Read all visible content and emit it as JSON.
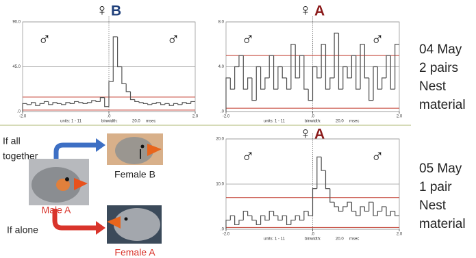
{
  "chart_data": [
    {
      "type": "histogram",
      "title_symbol": "♀",
      "title": "B",
      "title_color": "#1f3f7a",
      "annotations": [
        "♂",
        "♂"
      ],
      "bins": [
        -2.0,
        -1.9,
        -1.8,
        -1.7,
        -1.6,
        -1.5,
        -1.4,
        -1.3,
        -1.2,
        -1.1,
        -1.0,
        -0.9,
        -0.8,
        -0.7,
        -0.6,
        -0.5,
        -0.4,
        -0.3,
        -0.2,
        -0.1,
        0.0,
        0.1,
        0.2,
        0.3,
        0.4,
        0.5,
        0.6,
        0.7,
        0.8,
        0.9,
        1.0,
        1.1,
        1.2,
        1.3,
        1.4,
        1.5,
        1.6,
        1.7,
        1.8,
        1.9,
        2.0
      ],
      "values": [
        8,
        7,
        9,
        6,
        8,
        10,
        7,
        9,
        8,
        7,
        9,
        8,
        10,
        9,
        8,
        9,
        11,
        10,
        14,
        5,
        30,
        75,
        45,
        28,
        20,
        12,
        10,
        9,
        8,
        7,
        8,
        9,
        7,
        8,
        6,
        8,
        7,
        9,
        8,
        10
      ],
      "color": "#555555",
      "xlim": [
        -2.0,
        2.0
      ],
      "xticks": [
        {
          "value": -2.0,
          "label": "-2.0"
        },
        {
          "value": 0,
          "label": ".0"
        },
        {
          "value": 2.0,
          "label": "2.0"
        }
      ],
      "ylim": [
        0,
        90
      ],
      "yticks": [
        {
          "value": 0,
          "label": ".0"
        },
        {
          "value": 45,
          "label": "45.0"
        },
        {
          "value": 90,
          "label": "90.0"
        }
      ],
      "grid": true,
      "reference_lines": [
        14.5,
        1.5
      ],
      "reference_color": "#c0392b",
      "footer": [
        "units:  1 - 11",
        "binwidth:",
        "20.0",
        "msec"
      ]
    },
    {
      "type": "histogram",
      "title_symbol": "♀",
      "title": "A",
      "title_color": "#8b1a1a",
      "annotations": [
        "♂",
        "♂"
      ],
      "bins": [
        -2.0,
        -1.9,
        -1.8,
        -1.7,
        -1.6,
        -1.5,
        -1.4,
        -1.3,
        -1.2,
        -1.1,
        -1.0,
        -0.9,
        -0.8,
        -0.7,
        -0.6,
        -0.5,
        -0.4,
        -0.3,
        -0.2,
        -0.1,
        0.0,
        0.1,
        0.2,
        0.3,
        0.4,
        0.5,
        0.6,
        0.7,
        0.8,
        0.9,
        1.0,
        1.1,
        1.2,
        1.3,
        1.4,
        1.5,
        1.6,
        1.7,
        1.8,
        1.9,
        2.0
      ],
      "values": [
        3,
        2,
        4,
        5,
        2,
        3,
        1,
        4,
        2,
        3,
        5,
        2,
        4,
        3,
        2,
        6,
        3,
        5,
        2,
        1,
        4,
        3,
        6,
        2,
        3,
        7,
        2,
        4,
        3,
        5,
        2,
        6,
        3,
        1,
        4,
        2,
        3,
        5,
        2,
        6
      ],
      "color": "#555555",
      "xlim": [
        -2.0,
        2.0
      ],
      "xticks": [
        {
          "value": -2.0,
          "label": "-2.0"
        },
        {
          "value": 0,
          "label": ".0"
        },
        {
          "value": 2.0,
          "label": "2.0"
        }
      ],
      "ylim": [
        0,
        8
      ],
      "yticks": [
        {
          "value": 0,
          "label": ".0"
        },
        {
          "value": 4,
          "label": "4.0"
        },
        {
          "value": 8,
          "label": "8.0"
        }
      ],
      "grid": true,
      "reference_lines": [
        5,
        0.3
      ],
      "reference_color": "#c0392b",
      "footer": [
        "units:  1 - 11",
        "binwidth:",
        "20.0",
        "msec"
      ]
    },
    {
      "type": "histogram",
      "title_symbol": "♀",
      "title": "A",
      "title_color": "#8b1a1a",
      "annotations": [
        "♂",
        "♂"
      ],
      "bins": [
        -2.0,
        -1.9,
        -1.8,
        -1.7,
        -1.6,
        -1.5,
        -1.4,
        -1.3,
        -1.2,
        -1.1,
        -1.0,
        -0.9,
        -0.8,
        -0.7,
        -0.6,
        -0.5,
        -0.4,
        -0.3,
        -0.2,
        -0.1,
        0.0,
        0.1,
        0.2,
        0.3,
        0.4,
        0.5,
        0.6,
        0.7,
        0.8,
        0.9,
        1.0,
        1.1,
        1.2,
        1.3,
        1.4,
        1.5,
        1.6,
        1.7,
        1.8,
        1.9,
        2.0
      ],
      "values": [
        2,
        3,
        1,
        2,
        4,
        3,
        2,
        1,
        3,
        2,
        4,
        3,
        2,
        3,
        1,
        2,
        3,
        2,
        4,
        3,
        9,
        16,
        13,
        9,
        6,
        5,
        4,
        5,
        6,
        4,
        3,
        5,
        4,
        6,
        3,
        4,
        5,
        3,
        4,
        3
      ],
      "color": "#555555",
      "xlim": [
        -2.0,
        2.0
      ],
      "xticks": [
        {
          "value": -2.0,
          "label": "-2.0"
        },
        {
          "value": 0,
          "label": ".0"
        },
        {
          "value": 2.0,
          "label": "2.0"
        }
      ],
      "ylim": [
        0,
        20
      ],
      "yticks": [
        {
          "value": 0,
          "label": ".0"
        },
        {
          "value": 10,
          "label": "10.0"
        },
        {
          "value": 20,
          "label": "20.0"
        }
      ],
      "grid": true,
      "reference_lines": [
        7,
        0.4
      ],
      "reference_color": "#c0392b",
      "footer": [
        "units:  1 - 11",
        "binwidth:",
        "20.0",
        "msec"
      ]
    }
  ],
  "notes": {
    "top": [
      "04 May",
      "2 pairs",
      "Nest",
      "material"
    ],
    "bottom": [
      "05 May",
      "1 pair",
      "Nest",
      "material"
    ]
  },
  "diagram": {
    "together": [
      "If  all",
      "together"
    ],
    "female_b": "Female B",
    "male_a": "Male A",
    "alone": "If alone",
    "female_a": "Female A"
  }
}
